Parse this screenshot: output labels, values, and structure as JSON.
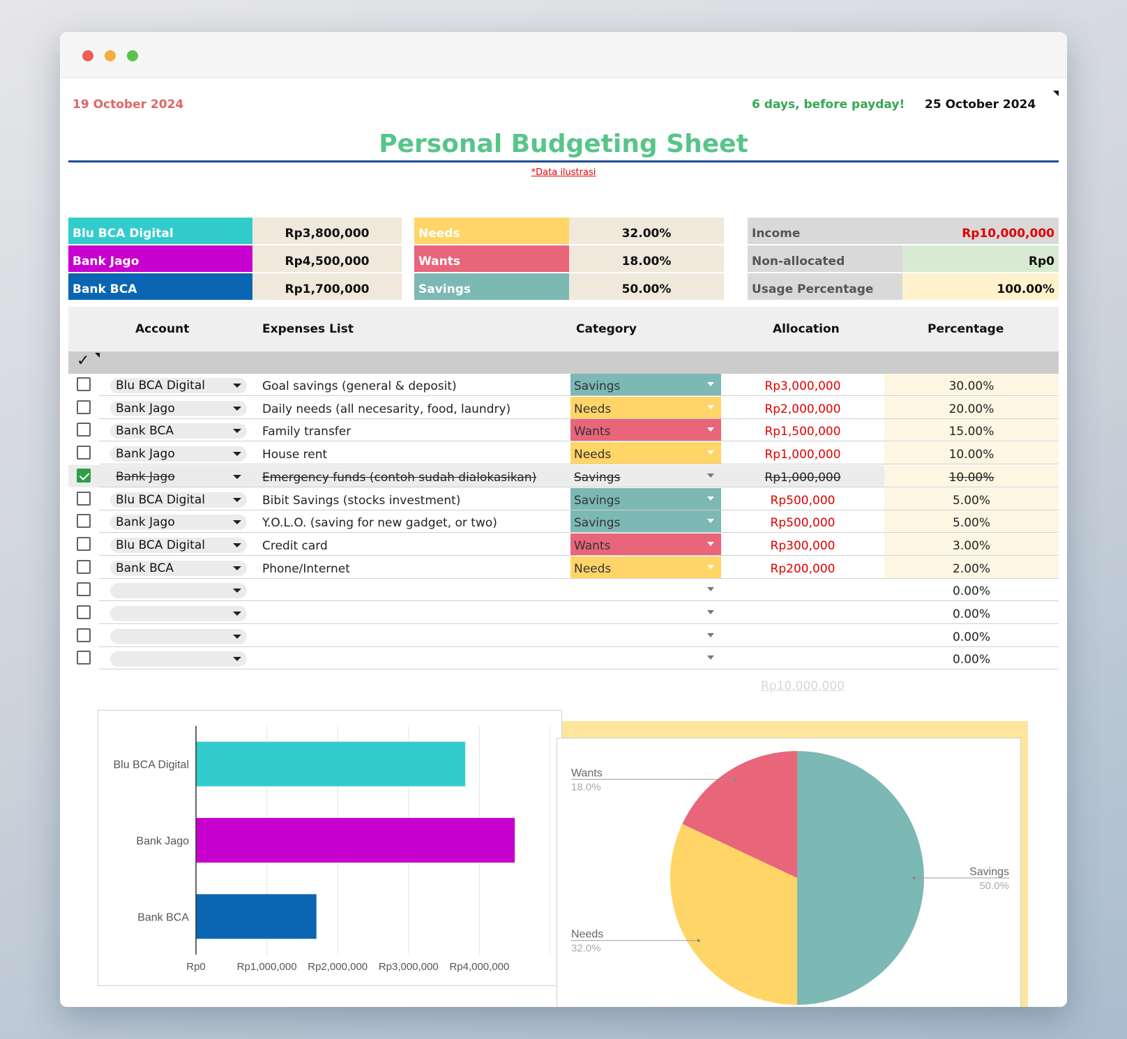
{
  "header": {
    "date_left": "19 October 2024",
    "payday_text": "6 days, before payday!",
    "date_right": "25 October 2024",
    "title": "Personal Budgeting Sheet",
    "note": "*Data ilustrasi"
  },
  "accounts_summary": [
    {
      "name": "Blu BCA Digital",
      "amount": "Rp3,800,000",
      "color": "#32cccc"
    },
    {
      "name": "Bank Jago",
      "amount": "Rp4,500,000",
      "color": "#c800cf"
    },
    {
      "name": "Bank BCA",
      "amount": "Rp1,700,000",
      "color": "#0a66b2"
    }
  ],
  "categories_summary": [
    {
      "name": "Needs",
      "percent": "32.00%",
      "color": "#ffd567"
    },
    {
      "name": "Wants",
      "percent": "18.00%",
      "color": "#e8657a"
    },
    {
      "name": "Savings",
      "percent": "50.00%",
      "color": "#7cb8b4"
    }
  ],
  "budget_summary": {
    "income_label": "Income",
    "income_value": "Rp10,000,000",
    "nonalloc_label": "Non-allocated",
    "nonalloc_value": "Rp0",
    "usage_label": "Usage Percentage",
    "usage_value": "100.00%"
  },
  "table": {
    "headers": {
      "account": "Account",
      "expenses": "Expenses List",
      "category": "Category",
      "allocation": "Allocation",
      "percentage": "Percentage"
    },
    "header_check": "✓",
    "rows": [
      {
        "checked": false,
        "account": "Blu BCA Digital",
        "expense": "Goal savings (general & deposit)",
        "category": "Savings",
        "allocation": "Rp3,000,000",
        "percentage": "30.00%"
      },
      {
        "checked": false,
        "account": "Bank Jago",
        "expense": "Daily needs (all necesarity, food, laundry)",
        "category": "Needs",
        "allocation": "Rp2,000,000",
        "percentage": "20.00%"
      },
      {
        "checked": false,
        "account": "Bank BCA",
        "expense": "Family transfer",
        "category": "Wants",
        "allocation": "Rp1,500,000",
        "percentage": "15.00%"
      },
      {
        "checked": false,
        "account": "Bank Jago",
        "expense": "House rent",
        "category": "Needs",
        "allocation": "Rp1,000,000",
        "percentage": "10.00%"
      },
      {
        "checked": true,
        "account": "Bank Jago",
        "expense": "Emergency funds (contoh sudah dialokasikan)",
        "category": "Savings",
        "allocation": "Rp1,000,000",
        "percentage": "10.00%"
      },
      {
        "checked": false,
        "account": "Blu BCA Digital",
        "expense": "Bibit Savings (stocks investment)",
        "category": "Savings",
        "allocation": "Rp500,000",
        "percentage": "5.00%"
      },
      {
        "checked": false,
        "account": "Bank Jago",
        "expense": "Y.O.L.O. (saving for new gadget, or two)",
        "category": "Savings",
        "allocation": "Rp500,000",
        "percentage": "5.00%"
      },
      {
        "checked": false,
        "account": "Blu BCA Digital",
        "expense": "Credit card",
        "category": "Wants",
        "allocation": "Rp300,000",
        "percentage": "3.00%"
      },
      {
        "checked": false,
        "account": "Bank BCA",
        "expense": "Phone/Internet",
        "category": "Needs",
        "allocation": "Rp200,000",
        "percentage": "2.00%"
      },
      {
        "checked": false,
        "account": "",
        "expense": "",
        "category": "",
        "allocation": "",
        "percentage": "0.00%"
      },
      {
        "checked": false,
        "account": "",
        "expense": "",
        "category": "",
        "allocation": "",
        "percentage": "0.00%"
      },
      {
        "checked": false,
        "account": "",
        "expense": "",
        "category": "",
        "allocation": "",
        "percentage": "0.00%"
      },
      {
        "checked": false,
        "account": "",
        "expense": "",
        "category": "",
        "allocation": "",
        "percentage": "0.00%"
      }
    ],
    "total_allocation": "Rp10,000,000"
  },
  "colors": {
    "accent_green": "#57c58a",
    "title_line": "#1c4a96",
    "alloc_red": "#e00000",
    "summary_bg": "#efe8db",
    "summary_gray": "#d9d9d9",
    "nonalloc_bg": "#d9ead3",
    "usage_bg": "#fff2cc",
    "pct_col_bg": "#fdf6e3"
  },
  "chart_data": [
    {
      "type": "bar",
      "orientation": "horizontal",
      "categories": [
        "Blu BCA Digital",
        "Bank Jago",
        "Bank BCA"
      ],
      "values": [
        3800000,
        4500000,
        1700000
      ],
      "colors": [
        "#32cccc",
        "#c800cf",
        "#0a66b2"
      ],
      "xticks": [
        "Rp0",
        "Rp1,000,000",
        "Rp2,000,000",
        "Rp3,000,000",
        "Rp4,000,000"
      ],
      "xlim": [
        0,
        5000000
      ],
      "grid": true
    },
    {
      "type": "pie",
      "slices": [
        {
          "label": "Savings",
          "value": 50.0,
          "pct_label": "50.0%",
          "color": "#7cb8b4"
        },
        {
          "label": "Needs",
          "value": 32.0,
          "pct_label": "32.0%",
          "color": "#ffd567"
        },
        {
          "label": "Wants",
          "value": 18.0,
          "pct_label": "18.0%",
          "color": "#e8657a"
        }
      ]
    }
  ]
}
